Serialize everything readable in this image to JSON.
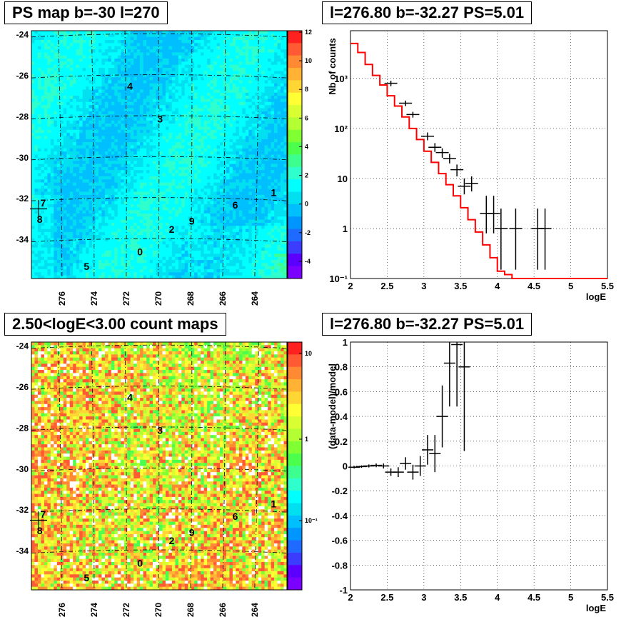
{
  "panels": {
    "tl_title": "PS map b=-30 l=270",
    "tr_title": "l=276.80 b=-32.27 PS=5.01",
    "bl_title": "2.50<logE<3.00 count maps",
    "br_title": "l=276.80 b=-32.27 PS=5.01"
  },
  "colors": {
    "line_red": "#ff0000",
    "data_black": "#000000"
  },
  "chart_data": [
    {
      "type": "heatmap",
      "title": "PS map b=-30 l=270",
      "x_ticks": [
        "276",
        "274",
        "272",
        "270",
        "268",
        "266",
        "264"
      ],
      "y_ticks": [
        "-24",
        "-26",
        "-28",
        "-30",
        "-32",
        "-34"
      ],
      "colorbar_ticks": [
        "12",
        "10",
        "8",
        "6",
        "4",
        "2",
        "0",
        "-2",
        "-4"
      ],
      "source_labels": [
        {
          "label": "4",
          "l": 271.7,
          "b": -26.5
        },
        {
          "label": "3",
          "l": 269.9,
          "b": -28.1
        },
        {
          "label": "1",
          "l": 263.1,
          "b": -31.7
        },
        {
          "label": "6",
          "l": 265.4,
          "b": -32.3
        },
        {
          "label": "7",
          "l": 276.9,
          "b": -32.2
        },
        {
          "label": "8",
          "l": 277.1,
          "b": -33.0
        },
        {
          "label": "2",
          "l": 269.2,
          "b": -33.5
        },
        {
          "label": "9",
          "l": 268.0,
          "b": -33.1
        },
        {
          "label": "0",
          "l": 271.1,
          "b": -34.6
        },
        {
          "label": "5",
          "l": 274.3,
          "b": -35.3
        }
      ]
    },
    {
      "type": "line",
      "title": "l=276.80 b=-32.27 PS=5.01",
      "xlabel": "logE",
      "ylabel": "Nb of counts",
      "xlim": [
        2,
        5.5
      ],
      "ylim": [
        0.1,
        9000
      ],
      "ylog": true,
      "x_ticks": [
        "2",
        "2.5",
        "3",
        "3.5",
        "4",
        "4.5",
        "5",
        "5.5"
      ],
      "y_ticks": [
        "10⁻¹",
        "1",
        "10",
        "10²",
        "10³"
      ],
      "model_step_y": [
        5000,
        3300,
        1900,
        1150,
        740,
        450,
        280,
        170,
        100,
        60,
        35,
        21,
        12.5,
        7.5,
        4.5,
        2.6,
        1.5,
        0.85,
        0.47,
        0.26,
        0.14,
        0.12,
        0.1,
        0.1,
        0.1,
        0.1,
        0.1,
        0.1,
        0.1,
        0.1,
        0.1,
        0.1,
        0.1,
        0.1,
        0.1
      ],
      "data_points": [
        {
          "x": 2.55,
          "y": 800,
          "ey": [
            700,
            900
          ]
        },
        {
          "x": 2.75,
          "y": 320,
          "ey": [
            280,
            360
          ]
        },
        {
          "x": 2.85,
          "y": 190,
          "ey": [
            165,
            215
          ]
        },
        {
          "x": 3.05,
          "y": 70,
          "ey": [
            58,
            83
          ]
        },
        {
          "x": 3.15,
          "y": 42,
          "ey": [
            34,
            51
          ]
        },
        {
          "x": 3.25,
          "y": 33,
          "ey": [
            26,
            40
          ]
        },
        {
          "x": 3.35,
          "y": 25,
          "ey": [
            20,
            31
          ]
        },
        {
          "x": 3.45,
          "y": 15,
          "ey": [
            11,
            19
          ]
        },
        {
          "x": 3.55,
          "y": 7,
          "ey": [
            4.8,
            10
          ]
        },
        {
          "x": 3.65,
          "y": 8,
          "ey": [
            5.5,
            11
          ]
        },
        {
          "x": 3.85,
          "y": 2,
          "ey": [
            0.8,
            4.5
          ]
        },
        {
          "x": 3.95,
          "y": 2,
          "ey": [
            0.8,
            4.5
          ]
        },
        {
          "x": 4.05,
          "y": 1,
          "ey": [
            0.15,
            2.5
          ]
        },
        {
          "x": 4.25,
          "y": 1,
          "ey": [
            0.15,
            2.5
          ]
        },
        {
          "x": 4.55,
          "y": 1,
          "ey": [
            0.15,
            2.5
          ]
        },
        {
          "x": 4.65,
          "y": 1,
          "ey": [
            0.15,
            2.5
          ]
        }
      ]
    },
    {
      "type": "heatmap",
      "title": "2.50<logE<3.00 count maps",
      "x_ticks": [
        "276",
        "274",
        "272",
        "270",
        "268",
        "266",
        "264"
      ],
      "y_ticks": [
        "-24",
        "-26",
        "-28",
        "-30",
        "-32",
        "-34"
      ],
      "colorbar_ticks": [
        "10",
        "1",
        "10⁻¹"
      ],
      "source_labels": [
        {
          "label": "4",
          "l": 271.7,
          "b": -26.5
        },
        {
          "label": "3",
          "l": 269.9,
          "b": -28.1
        },
        {
          "label": "1",
          "l": 263.1,
          "b": -31.7
        },
        {
          "label": "6",
          "l": 265.4,
          "b": -32.3
        },
        {
          "label": "7",
          "l": 276.9,
          "b": -32.2
        },
        {
          "label": "8",
          "l": 277.1,
          "b": -33.0
        },
        {
          "label": "2",
          "l": 269.2,
          "b": -33.5
        },
        {
          "label": "9",
          "l": 268.0,
          "b": -33.1
        },
        {
          "label": "0",
          "l": 271.1,
          "b": -34.6
        },
        {
          "label": "5",
          "l": 274.3,
          "b": -35.3
        }
      ]
    },
    {
      "type": "scatter",
      "title": "l=276.80 b=-32.27 PS=5.01",
      "xlabel": "logE",
      "ylabel": "(data-model)/model",
      "xlim": [
        2,
        5.5
      ],
      "ylim": [
        -1,
        1
      ],
      "x_ticks": [
        "2",
        "2.5",
        "3",
        "3.5",
        "4",
        "4.5",
        "5",
        "5.5"
      ],
      "y_ticks": [
        "1",
        "0.8",
        "0.6",
        "0.4",
        "0.2",
        "0",
        "-0.2",
        "-0.4",
        "-0.6",
        "-0.8",
        "-1"
      ],
      "data_points": [
        {
          "x": 2.05,
          "y": -0.01,
          "ey": 0.01
        },
        {
          "x": 2.15,
          "y": -0.005,
          "ey": 0.01
        },
        {
          "x": 2.25,
          "y": 0.0,
          "ey": 0.012
        },
        {
          "x": 2.35,
          "y": 0.005,
          "ey": 0.015
        },
        {
          "x": 2.45,
          "y": 0.0,
          "ey": 0.02
        },
        {
          "x": 2.55,
          "y": -0.05,
          "ey": 0.03
        },
        {
          "x": 2.65,
          "y": -0.05,
          "ey": 0.04
        },
        {
          "x": 2.75,
          "y": 0.02,
          "ey": 0.05
        },
        {
          "x": 2.85,
          "y": -0.05,
          "ey": 0.06
        },
        {
          "x": 2.95,
          "y": 0.0,
          "ey": 0.08
        },
        {
          "x": 3.05,
          "y": 0.13,
          "ey": 0.12
        },
        {
          "x": 3.15,
          "y": 0.1,
          "ey": 0.15
        },
        {
          "x": 3.25,
          "y": 0.4,
          "ey": 0.25
        },
        {
          "x": 3.35,
          "y": 0.83,
          "ey": 0.35
        },
        {
          "x": 3.45,
          "y": 0.98,
          "ey": 0.5
        },
        {
          "x": 3.55,
          "y": 0.8,
          "ey": 0.68
        }
      ]
    }
  ]
}
